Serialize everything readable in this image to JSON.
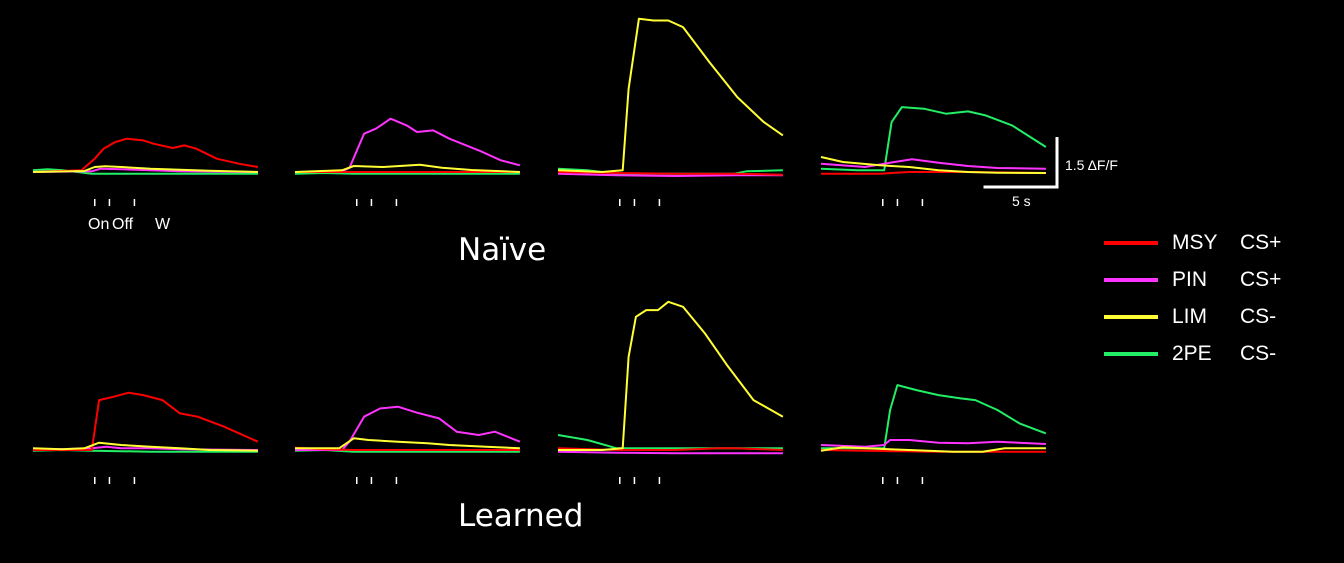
{
  "chart_data": {
    "type": "line",
    "conditions": [
      "Naïve",
      "Learned"
    ],
    "event_labels": {
      "on": "On",
      "off": "Off",
      "w": "W"
    },
    "scale_bar": {
      "y_label": "1.5 ΔF/F",
      "x_label": "5 s"
    },
    "series": [
      {
        "name": "MSY",
        "cs": "CS+",
        "color": "#ff0000"
      },
      {
        "name": "PIN",
        "cs": "CS+",
        "color": "#ff33ff"
      },
      {
        "name": "LIM",
        "cs": "CS-",
        "color": "#ffff33"
      },
      {
        "name": "2PE",
        "cs": "CS-",
        "color": "#22ee66"
      }
    ],
    "x_unit": "s",
    "y_unit": "ΔF/F",
    "event_times_s": {
      "on": 4.2,
      "off": 5.2,
      "w": 6.9
    },
    "panels": [
      {
        "row": 0,
        "col": 0,
        "traces": {
          "MSY": [
            [
              0,
              0
            ],
            [
              3.3,
              0.05
            ],
            [
              4.2,
              0.4
            ],
            [
              4.8,
              0.7
            ],
            [
              5.6,
              0.9
            ],
            [
              6.4,
              1.0
            ],
            [
              7.5,
              0.95
            ],
            [
              8.2,
              0.85
            ],
            [
              9.5,
              0.72
            ],
            [
              10.3,
              0.8
            ],
            [
              11.1,
              0.7
            ],
            [
              12.5,
              0.4
            ],
            [
              14,
              0.25
            ],
            [
              15.3,
              0.15
            ]
          ],
          "PIN": [
            [
              0,
              0
            ],
            [
              4,
              0.02
            ],
            [
              4.6,
              0.1
            ],
            [
              6,
              0.08
            ],
            [
              8,
              0.05
            ],
            [
              10,
              0.02
            ],
            [
              15.3,
              0.0
            ]
          ],
          "LIM": [
            [
              0,
              0
            ],
            [
              3.5,
              0.03
            ],
            [
              4.2,
              0.15
            ],
            [
              4.9,
              0.17
            ],
            [
              6,
              0.15
            ],
            [
              8,
              0.1
            ],
            [
              10,
              0.07
            ],
            [
              12,
              0.04
            ],
            [
              15.3,
              0.0
            ]
          ],
          "2PE": [
            [
              0,
              0.05
            ],
            [
              1,
              0.08
            ],
            [
              2,
              0.05
            ],
            [
              4,
              -0.05
            ],
            [
              6,
              -0.05
            ],
            [
              10,
              -0.05
            ],
            [
              15.3,
              -0.05
            ]
          ]
        }
      },
      {
        "row": 0,
        "col": 1,
        "traces": {
          "MSY": [
            [
              0,
              0
            ],
            [
              4,
              0
            ],
            [
              8,
              0
            ],
            [
              15.3,
              0
            ]
          ],
          "PIN": [
            [
              0,
              0
            ],
            [
              3.1,
              0
            ],
            [
              3.7,
              0.12
            ],
            [
              4.7,
              1.15
            ],
            [
              5.5,
              1.3
            ],
            [
              6.5,
              1.6
            ],
            [
              7.6,
              1.4
            ],
            [
              8.3,
              1.2
            ],
            [
              9.4,
              1.25
            ],
            [
              10.5,
              1.0
            ],
            [
              12.5,
              0.65
            ],
            [
              14,
              0.35
            ],
            [
              15.3,
              0.2
            ]
          ],
          "LIM": [
            [
              0,
              0
            ],
            [
              3.2,
              0.05
            ],
            [
              4,
              0.18
            ],
            [
              6,
              0.15
            ],
            [
              8.5,
              0.22
            ],
            [
              10,
              0.13
            ],
            [
              12,
              0.06
            ],
            [
              15.3,
              0.0
            ]
          ],
          "2PE": [
            [
              0,
              -0.05
            ],
            [
              2,
              -0.03
            ],
            [
              4,
              -0.05
            ],
            [
              10,
              -0.05
            ],
            [
              15.3,
              -0.05
            ]
          ]
        }
      },
      {
        "row": 0,
        "col": 2,
        "traces": {
          "MSY": [
            [
              0,
              0.0
            ],
            [
              4,
              -0.03
            ],
            [
              8,
              -0.05
            ],
            [
              12,
              -0.05
            ],
            [
              15.3,
              -0.08
            ]
          ],
          "PIN": [
            [
              0,
              -0.05
            ],
            [
              4,
              -0.1
            ],
            [
              8,
              -0.12
            ],
            [
              12,
              -0.1
            ],
            [
              15.3,
              -0.1
            ]
          ],
          "LIM": [
            [
              0,
              0.05
            ],
            [
              3,
              0.0
            ],
            [
              4.4,
              0.05
            ],
            [
              4.8,
              2.5
            ],
            [
              5.5,
              4.6
            ],
            [
              6.5,
              4.55
            ],
            [
              7.5,
              4.55
            ],
            [
              8.5,
              4.35
            ],
            [
              10.3,
              3.3
            ],
            [
              12.2,
              2.25
            ],
            [
              14,
              1.5
            ],
            [
              15.3,
              1.1
            ]
          ],
          "2PE": [
            [
              0,
              0.1
            ],
            [
              2,
              0.05
            ],
            [
              4,
              -0.05
            ],
            [
              8,
              -0.05
            ],
            [
              12,
              -0.05
            ],
            [
              12.8,
              0.02
            ],
            [
              15.3,
              0.05
            ]
          ]
        }
      },
      {
        "row": 0,
        "col": 3,
        "traces": {
          "MSY": [
            [
              0,
              -0.05
            ],
            [
              4,
              -0.05
            ],
            [
              6,
              0.0
            ],
            [
              10,
              0.0
            ],
            [
              15.3,
              -0.03
            ]
          ],
          "PIN": [
            [
              0,
              0.25
            ],
            [
              3,
              0.15
            ],
            [
              5,
              0.3
            ],
            [
              6.2,
              0.38
            ],
            [
              8,
              0.28
            ],
            [
              10,
              0.18
            ],
            [
              12,
              0.12
            ],
            [
              15.3,
              0.1
            ]
          ],
          "LIM": [
            [
              0,
              0.45
            ],
            [
              1.5,
              0.3
            ],
            [
              4,
              0.2
            ],
            [
              6,
              0.15
            ],
            [
              8,
              0.05
            ],
            [
              10,
              0.0
            ],
            [
              12,
              -0.02
            ],
            [
              15.3,
              -0.03
            ]
          ],
          "2PE": [
            [
              0,
              0.1
            ],
            [
              2.5,
              0.05
            ],
            [
              4.3,
              0.05
            ],
            [
              4.8,
              1.5
            ],
            [
              5.5,
              1.95
            ],
            [
              7,
              1.9
            ],
            [
              8.5,
              1.75
            ],
            [
              10,
              1.82
            ],
            [
              11.2,
              1.7
            ],
            [
              13,
              1.4
            ],
            [
              15.3,
              0.75
            ]
          ]
        }
      },
      {
        "row": 1,
        "col": 0,
        "traces": {
          "MSY": [
            [
              0,
              0
            ],
            [
              4,
              0
            ],
            [
              4.5,
              1.5
            ],
            [
              5.5,
              1.6
            ],
            [
              6.5,
              1.72
            ],
            [
              7.5,
              1.65
            ],
            [
              8.8,
              1.5
            ],
            [
              10,
              1.1
            ],
            [
              11.2,
              1.0
            ],
            [
              13,
              0.7
            ],
            [
              15.3,
              0.25
            ]
          ],
          "PIN": [
            [
              0,
              0
            ],
            [
              4,
              0.05
            ],
            [
              5,
              0.1
            ],
            [
              6,
              0.05
            ],
            [
              8,
              0.05
            ],
            [
              10,
              0.02
            ],
            [
              15.3,
              0.0
            ]
          ],
          "LIM": [
            [
              0,
              0.05
            ],
            [
              2,
              0.02
            ],
            [
              3.5,
              0.05
            ],
            [
              4.5,
              0.22
            ],
            [
              6,
              0.15
            ],
            [
              8,
              0.1
            ],
            [
              10,
              0.05
            ],
            [
              12,
              0.0
            ],
            [
              15.3,
              -0.02
            ]
          ],
          "2PE": [
            [
              0,
              -0.02
            ],
            [
              2,
              0.0
            ],
            [
              4,
              -0.02
            ],
            [
              8,
              -0.05
            ],
            [
              10,
              -0.05
            ],
            [
              15.3,
              -0.05
            ]
          ]
        }
      },
      {
        "row": 1,
        "col": 1,
        "traces": {
          "MSY": [
            [
              0,
              0.07
            ],
            [
              2,
              0.02
            ],
            [
              4,
              0.0
            ],
            [
              8,
              0.0
            ],
            [
              12,
              0.0
            ],
            [
              15.3,
              0.0
            ]
          ],
          "PIN": [
            [
              0,
              0
            ],
            [
              3.2,
              0.0
            ],
            [
              3.7,
              0.25
            ],
            [
              4.7,
              1.0
            ],
            [
              5.8,
              1.25
            ],
            [
              7,
              1.3
            ],
            [
              8.3,
              1.12
            ],
            [
              9.8,
              0.95
            ],
            [
              11,
              0.55
            ],
            [
              12.5,
              0.45
            ],
            [
              13.6,
              0.55
            ],
            [
              15.3,
              0.25
            ]
          ],
          "LIM": [
            [
              0,
              0.05
            ],
            [
              3,
              0.05
            ],
            [
              4,
              0.35
            ],
            [
              5,
              0.3
            ],
            [
              7,
              0.25
            ],
            [
              9,
              0.2
            ],
            [
              10.5,
              0.15
            ],
            [
              13,
              0.1
            ],
            [
              15.3,
              0.05
            ]
          ],
          "2PE": [
            [
              0,
              -0.02
            ],
            [
              2,
              0.0
            ],
            [
              4,
              -0.05
            ],
            [
              8,
              -0.05
            ],
            [
              12,
              -0.05
            ],
            [
              15.3,
              -0.05
            ]
          ]
        }
      },
      {
        "row": 1,
        "col": 2,
        "traces": {
          "MSY": [
            [
              0,
              0.05
            ],
            [
              4,
              0.0
            ],
            [
              8,
              0.0
            ],
            [
              11,
              0.05
            ],
            [
              12,
              0.05
            ],
            [
              15.3,
              0.0
            ]
          ],
          "PIN": [
            [
              0,
              -0.05
            ],
            [
              4,
              -0.08
            ],
            [
              8,
              -0.1
            ],
            [
              12,
              -0.1
            ],
            [
              15.3,
              -0.1
            ]
          ],
          "LIM": [
            [
              0,
              0.0
            ],
            [
              3,
              0.0
            ],
            [
              4.4,
              0.05
            ],
            [
              4.8,
              2.8
            ],
            [
              5.3,
              4.0
            ],
            [
              6,
              4.2
            ],
            [
              6.8,
              4.2
            ],
            [
              7.5,
              4.45
            ],
            [
              8.5,
              4.3
            ],
            [
              10,
              3.5
            ],
            [
              11.5,
              2.55
            ],
            [
              13.3,
              1.5
            ],
            [
              15.3,
              1.0
            ]
          ],
          "2PE": [
            [
              0,
              0.45
            ],
            [
              2,
              0.3
            ],
            [
              4,
              0.05
            ],
            [
              8,
              0.05
            ],
            [
              12,
              0.05
            ],
            [
              15.3,
              0.05
            ]
          ]
        }
      },
      {
        "row": 1,
        "col": 3,
        "traces": {
          "MSY": [
            [
              0,
              0.0
            ],
            [
              4,
              -0.03
            ],
            [
              8,
              -0.05
            ],
            [
              12,
              -0.05
            ],
            [
              15.3,
              -0.05
            ]
          ],
          "PIN": [
            [
              0,
              0.15
            ],
            [
              3,
              0.1
            ],
            [
              4.3,
              0.15
            ],
            [
              4.7,
              0.3
            ],
            [
              6,
              0.3
            ],
            [
              8,
              0.22
            ],
            [
              10,
              0.2
            ],
            [
              12,
              0.25
            ],
            [
              15.3,
              0.18
            ]
          ],
          "LIM": [
            [
              0,
              -0.02
            ],
            [
              1.5,
              0.08
            ],
            [
              3,
              0.05
            ],
            [
              6,
              0.0
            ],
            [
              9,
              -0.05
            ],
            [
              11,
              -0.05
            ],
            [
              12.5,
              0.05
            ],
            [
              15.3,
              0.05
            ]
          ],
          "2PE": [
            [
              0,
              0.05
            ],
            [
              2,
              0.05
            ],
            [
              4.3,
              0.05
            ],
            [
              4.7,
              1.2
            ],
            [
              5.2,
              1.95
            ],
            [
              6.5,
              1.8
            ],
            [
              8,
              1.65
            ],
            [
              9.5,
              1.55
            ],
            [
              10.5,
              1.5
            ],
            [
              12,
              1.2
            ],
            [
              13.5,
              0.8
            ],
            [
              15.3,
              0.5
            ]
          ]
        }
      }
    ]
  }
}
